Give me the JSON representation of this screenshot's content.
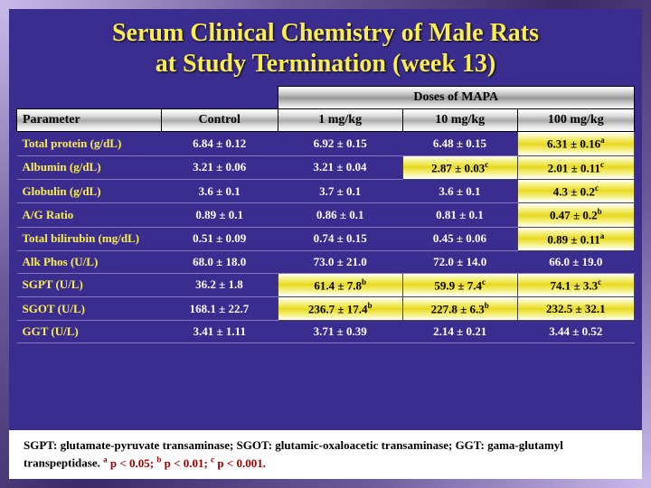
{
  "title_l1": "Serum Clinical Chemistry of Male Rats",
  "title_l2": "at Study Termination (week 13)",
  "doses_header": "Doses of MAPA",
  "cols": {
    "c0": "Parameter",
    "c1": "Control",
    "c2": "1 mg/kg",
    "c3": "10 mg/kg",
    "c4": "100 mg/kg"
  },
  "rows": [
    {
      "p": "Total protein (g/dL)",
      "v": [
        "6.84 ± 0.12",
        "6.92 ± 0.15",
        "6.48 ± 0.15",
        "6.31 ± 0.16"
      ],
      "sup": [
        "",
        "",
        "",
        "a"
      ],
      "hl": [
        0,
        0,
        0,
        1
      ]
    },
    {
      "p": "Albumin (g/dL)",
      "v": [
        "3.21 ± 0.06",
        "3.21 ± 0.04",
        "2.87 ± 0.03",
        "2.01 ± 0.11"
      ],
      "sup": [
        "",
        "",
        "c",
        "c"
      ],
      "hl": [
        0,
        0,
        1,
        1
      ]
    },
    {
      "p": "Globulin (g/dL)",
      "v": [
        "3.6 ± 0.1",
        "3.7 ± 0.1",
        "3.6 ± 0.1",
        "4.3 ± 0.2"
      ],
      "sup": [
        "",
        "",
        "",
        "c"
      ],
      "hl": [
        0,
        0,
        0,
        1
      ]
    },
    {
      "p": "A/G Ratio",
      "v": [
        "0.89 ± 0.1",
        "0.86 ± 0.1",
        "0.81 ± 0.1",
        "0.47 ± 0.2"
      ],
      "sup": [
        "",
        "",
        "",
        "b"
      ],
      "hl": [
        0,
        0,
        0,
        1
      ]
    },
    {
      "p": "Total bilirubin (mg/dL)",
      "v": [
        "0.51 ± 0.09",
        "0.74 ± 0.15",
        "0.45 ± 0.06",
        "0.89 ± 0.11"
      ],
      "sup": [
        "",
        "",
        "",
        "a"
      ],
      "hl": [
        0,
        0,
        0,
        1
      ]
    },
    {
      "p": "Alk Phos (U/L)",
      "v": [
        "68.0 ± 18.0",
        "73.0 ± 21.0",
        "72.0 ± 14.0",
        "66.0 ± 19.0"
      ],
      "sup": [
        "",
        "",
        "",
        ""
      ],
      "hl": [
        0,
        0,
        0,
        0
      ]
    },
    {
      "p": "SGPT (U/L)",
      "v": [
        "36.2 ± 1.8",
        "61.4 ± 7.8",
        "59.9 ± 7.4",
        "74.1 ± 3.3"
      ],
      "sup": [
        "",
        "b",
        "c",
        "c"
      ],
      "hl": [
        0,
        1,
        1,
        1
      ]
    },
    {
      "p": "SGOT (U/L)",
      "v": [
        "168.1 ± 22.7",
        "236.7 ± 17.4",
        "227.8 ± 6.3",
        "232.5 ± 32.1"
      ],
      "sup": [
        "",
        "b",
        "b",
        ""
      ],
      "hl": [
        0,
        1,
        1,
        1
      ]
    },
    {
      "p": "GGT (U/L)",
      "v": [
        "3.41 ± 1.11",
        "3.71 ± 0.39",
        "2.14 ± 0.21",
        "3.44 ± 0.52"
      ],
      "sup": [
        "",
        "",
        "",
        ""
      ],
      "hl": [
        0,
        0,
        0,
        0
      ]
    }
  ],
  "footnote": {
    "abbrev": "SGPT: glutamate-pyruvate transaminase; SGOT: glutamic-oxaloacetic transaminase; GGT: gama-glutamyl transpeptidase.",
    "sig_a": "a",
    "sig_a_t": " p < 0.05; ",
    "sig_b": "b",
    "sig_b_t": " p < 0.01; ",
    "sig_c": "c",
    "sig_c_t": " p < 0.001."
  },
  "colors": {
    "bg": "#3a2d8f",
    "accent": "#fcee4f",
    "text": "#ffffff"
  }
}
